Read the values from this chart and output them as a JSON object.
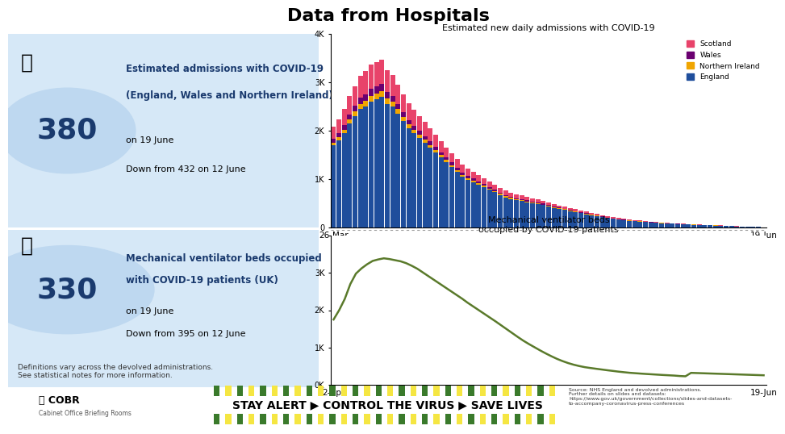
{
  "title": "Data from Hospitals",
  "title_fontsize": 16,
  "background_color": "#ffffff",
  "left_panel_bg": "#d6e8f7",
  "stat1_number": "380",
  "stat1_label1": "Estimated admissions with COVID-19",
  "stat1_label2": "(England, Wales and Northern Ireland)",
  "stat1_sub1": "on 19 June",
  "stat1_sub2": "Down from 432 on 12 June",
  "stat2_number": "330",
  "stat2_label1": "Mechanical ventilator beds occupied",
  "stat2_label2": "with COVID-19 patients (UK)",
  "stat2_sub1": "on 19 June",
  "stat2_sub2": "Down from 395 on 12 June",
  "footnote": "Definitions vary across the devolved administrations.\nSee statistical notes for more information.",
  "bar_title": "Estimated new daily admissions with COVID-19",
  "bar_xlabel_left": "26-Mar",
  "bar_xlabel_right": "19-Jun",
  "line_title": "Mechanical ventilator beds\noccupied by COVID-19 patients",
  "line_xlabel_left": "2-Apr",
  "line_xlabel_right": "19-Jun",
  "england_color": "#1f4e9c",
  "northern_ireland_color": "#f0a500",
  "wales_color": "#6a0070",
  "scotland_color": "#e8436a",
  "line_color": "#5a7a2b",
  "banner_yellow": "#f5e642",
  "banner_green": "#3a7a2b",
  "banner_text": "STAY ALERT ▶ CONTROL THE VIRUS ▶ SAVE LIVES",
  "source_text": "Source: NHS England and devolved administrations.\nFurther details on slides and datasets:\nhttps://www.gov.uk/government/collections/slides-and-datasets-\nto-accompany-coronavirus-press-conferences",
  "england_data": [
    1700,
    1800,
    1950,
    2150,
    2300,
    2450,
    2500,
    2600,
    2650,
    2700,
    2550,
    2500,
    2350,
    2200,
    2050,
    1950,
    1850,
    1750,
    1650,
    1550,
    1450,
    1350,
    1250,
    1150,
    1050,
    990,
    940,
    880,
    830,
    780,
    730,
    670,
    620,
    590,
    565,
    545,
    520,
    500,
    480,
    460,
    430,
    405,
    385,
    365,
    340,
    320,
    300,
    275,
    255,
    235,
    215,
    195,
    178,
    162,
    150,
    140,
    130,
    122,
    113,
    105,
    96,
    90,
    84,
    78,
    73,
    68,
    63,
    58,
    54,
    49,
    45,
    41,
    37,
    33,
    29,
    25,
    21,
    17,
    13,
    9,
    5
  ],
  "wales_data": [
    75,
    85,
    98,
    108,
    118,
    128,
    132,
    140,
    142,
    143,
    132,
    122,
    112,
    102,
    92,
    86,
    81,
    76,
    71,
    66,
    61,
    56,
    51,
    47,
    43,
    41,
    39,
    37,
    35,
    33,
    31,
    29,
    27,
    25,
    23,
    22,
    21,
    20,
    18,
    17,
    16,
    15,
    14,
    13,
    12,
    11,
    10,
    9,
    8,
    8,
    7,
    7,
    6,
    6,
    5,
    5,
    4,
    4,
    4,
    3,
    3,
    3,
    3,
    2,
    2,
    2,
    2,
    2,
    1,
    1,
    1,
    1,
    1,
    1,
    1,
    0,
    0,
    0,
    0,
    0,
    0
  ],
  "ni_data": [
    52,
    62,
    72,
    82,
    92,
    102,
    112,
    122,
    122,
    122,
    112,
    102,
    92,
    82,
    76,
    71,
    66,
    61,
    56,
    51,
    46,
    43,
    41,
    39,
    37,
    35,
    33,
    31,
    29,
    27,
    25,
    23,
    22,
    21,
    20,
    19,
    18,
    17,
    16,
    15,
    14,
    13,
    12,
    11,
    10,
    9,
    8,
    8,
    7,
    7,
    6,
    6,
    5,
    5,
    5,
    4,
    4,
    4,
    3,
    3,
    3,
    2,
    2,
    2,
    2,
    2,
    2,
    1,
    1,
    1,
    1,
    1,
    1,
    0,
    0,
    0,
    0,
    0,
    0,
    0,
    0
  ],
  "scotland_data": [
    260,
    290,
    330,
    370,
    410,
    460,
    490,
    510,
    510,
    500,
    460,
    430,
    400,
    370,
    350,
    328,
    308,
    288,
    268,
    248,
    228,
    208,
    188,
    175,
    165,
    155,
    145,
    135,
    125,
    115,
    105,
    98,
    92,
    87,
    82,
    77,
    72,
    67,
    62,
    57,
    52,
    50,
    47,
    44,
    41,
    39,
    36,
    34,
    31,
    29,
    27,
    25,
    23,
    21,
    19,
    18,
    16,
    15,
    13,
    12,
    11,
    10,
    9,
    9,
    8,
    7,
    7,
    6,
    6,
    5,
    5,
    5,
    4,
    4,
    4,
    3,
    3,
    2,
    2,
    2,
    1
  ],
  "vent_data": [
    1750,
    2000,
    2300,
    2700,
    2980,
    3120,
    3230,
    3320,
    3360,
    3390,
    3370,
    3340,
    3310,
    3260,
    3190,
    3110,
    3010,
    2910,
    2810,
    2710,
    2610,
    2510,
    2410,
    2310,
    2200,
    2100,
    2000,
    1900,
    1800,
    1700,
    1595,
    1490,
    1385,
    1280,
    1180,
    1090,
    1005,
    920,
    840,
    765,
    695,
    635,
    582,
    538,
    502,
    472,
    450,
    430,
    410,
    390,
    372,
    353,
    337,
    322,
    311,
    300,
    290,
    281,
    272,
    263,
    255,
    247,
    235,
    228,
    320,
    315,
    310,
    305,
    300,
    295,
    290,
    285,
    280,
    275,
    270,
    265,
    260,
    255
  ]
}
